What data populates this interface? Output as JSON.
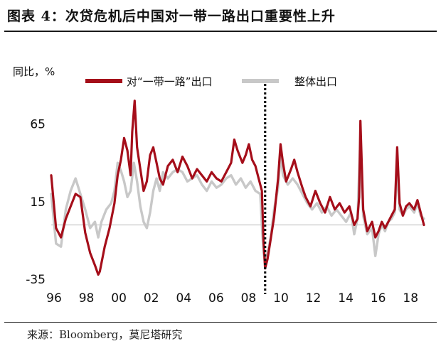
{
  "figure": {
    "title": "图表 4：次贷危机后中国对一带一路出口重要性上升",
    "source": "来源：Bloomberg，莫尼塔研究"
  },
  "chart_data": {
    "type": "line",
    "ylabel": "同比，%",
    "ylim": [
      -40,
      90
    ],
    "xlim": [
      1996.0,
      2019.0
    ],
    "y_ticks": [
      65,
      15,
      -35
    ],
    "x_tick_labels": [
      "96",
      "98",
      "00",
      "02",
      "04",
      "06",
      "08",
      "10",
      "12",
      "14",
      "16",
      "18"
    ],
    "x_tick_values": [
      1996,
      1998,
      2000,
      2002,
      2004,
      2006,
      2008,
      2010,
      2012,
      2014,
      2016,
      2018
    ],
    "zero_line": 0,
    "vline": {
      "x": 2009.2,
      "style": "dotted",
      "color": "#111111"
    },
    "legend_position": "top",
    "series": [
      {
        "name": "对“一带一路”出口",
        "color": "#a50e1a",
        "line_width": 3.2,
        "points": [
          [
            1996.0,
            32
          ],
          [
            1996.3,
            -2
          ],
          [
            1996.6,
            -8
          ],
          [
            1996.9,
            4
          ],
          [
            1997.2,
            12
          ],
          [
            1997.5,
            20
          ],
          [
            1997.8,
            18
          ],
          [
            1998.1,
            -5
          ],
          [
            1998.4,
            -18
          ],
          [
            1998.7,
            -26
          ],
          [
            1998.9,
            -32
          ],
          [
            1999.0,
            -30
          ],
          [
            1999.3,
            -14
          ],
          [
            1999.6,
            -2
          ],
          [
            1999.9,
            14
          ],
          [
            2000.1,
            32
          ],
          [
            2000.3,
            42
          ],
          [
            2000.5,
            56
          ],
          [
            2000.7,
            48
          ],
          [
            2000.9,
            32
          ],
          [
            2001.0,
            60
          ],
          [
            2001.15,
            80
          ],
          [
            2001.3,
            50
          ],
          [
            2001.5,
            36
          ],
          [
            2001.7,
            22
          ],
          [
            2001.9,
            28
          ],
          [
            2002.1,
            45
          ],
          [
            2002.3,
            50
          ],
          [
            2002.5,
            40
          ],
          [
            2002.7,
            30
          ],
          [
            2002.9,
            26
          ],
          [
            2003.2,
            38
          ],
          [
            2003.5,
            42
          ],
          [
            2003.8,
            34
          ],
          [
            2004.1,
            44
          ],
          [
            2004.4,
            38
          ],
          [
            2004.7,
            30
          ],
          [
            2005.0,
            36
          ],
          [
            2005.3,
            32
          ],
          [
            2005.6,
            28
          ],
          [
            2005.9,
            34
          ],
          [
            2006.2,
            30
          ],
          [
            2006.5,
            28
          ],
          [
            2006.8,
            34
          ],
          [
            2007.1,
            40
          ],
          [
            2007.3,
            55
          ],
          [
            2007.5,
            48
          ],
          [
            2007.8,
            40
          ],
          [
            2008.0,
            45
          ],
          [
            2008.2,
            52
          ],
          [
            2008.4,
            42
          ],
          [
            2008.6,
            38
          ],
          [
            2008.8,
            30
          ],
          [
            2009.0,
            22
          ],
          [
            2009.1,
            -10
          ],
          [
            2009.2,
            -28
          ],
          [
            2009.35,
            -22
          ],
          [
            2009.5,
            -12
          ],
          [
            2009.75,
            5
          ],
          [
            2010.0,
            30
          ],
          [
            2010.15,
            52
          ],
          [
            2010.3,
            40
          ],
          [
            2010.5,
            28
          ],
          [
            2010.8,
            36
          ],
          [
            2011.0,
            42
          ],
          [
            2011.2,
            34
          ],
          [
            2011.5,
            24
          ],
          [
            2011.7,
            18
          ],
          [
            2012.0,
            12
          ],
          [
            2012.3,
            22
          ],
          [
            2012.6,
            14
          ],
          [
            2012.9,
            8
          ],
          [
            2013.2,
            18
          ],
          [
            2013.5,
            10
          ],
          [
            2013.8,
            14
          ],
          [
            2014.1,
            8
          ],
          [
            2014.4,
            12
          ],
          [
            2014.7,
            0
          ],
          [
            2014.9,
            4
          ],
          [
            2015.0,
            18
          ],
          [
            2015.08,
            67
          ],
          [
            2015.25,
            10
          ],
          [
            2015.5,
            -4
          ],
          [
            2015.8,
            2
          ],
          [
            2016.0,
            -8
          ],
          [
            2016.2,
            -4
          ],
          [
            2016.4,
            2
          ],
          [
            2016.6,
            -2
          ],
          [
            2016.8,
            2
          ],
          [
            2017.0,
            6
          ],
          [
            2017.2,
            10
          ],
          [
            2017.35,
            50
          ],
          [
            2017.5,
            14
          ],
          [
            2017.7,
            6
          ],
          [
            2017.9,
            12
          ],
          [
            2018.1,
            14
          ],
          [
            2018.4,
            10
          ],
          [
            2018.6,
            16
          ],
          [
            2018.8,
            8
          ],
          [
            2019.0,
            0
          ]
        ]
      },
      {
        "name": "整体出口",
        "color": "#c8c8c8",
        "line_width": 3.4,
        "points": [
          [
            1996.0,
            20
          ],
          [
            1996.3,
            -12
          ],
          [
            1996.6,
            -14
          ],
          [
            1996.9,
            10
          ],
          [
            1997.2,
            22
          ],
          [
            1997.5,
            30
          ],
          [
            1997.8,
            20
          ],
          [
            1998.1,
            10
          ],
          [
            1998.4,
            -2
          ],
          [
            1998.7,
            2
          ],
          [
            1998.9,
            -8
          ],
          [
            1999.1,
            2
          ],
          [
            1999.4,
            10
          ],
          [
            1999.7,
            14
          ],
          [
            1999.9,
            22
          ],
          [
            2000.1,
            40
          ],
          [
            2000.3,
            35
          ],
          [
            2000.5,
            28
          ],
          [
            2000.7,
            18
          ],
          [
            2000.9,
            22
          ],
          [
            2001.1,
            40
          ],
          [
            2001.3,
            28
          ],
          [
            2001.5,
            12
          ],
          [
            2001.7,
            2
          ],
          [
            2001.9,
            -2
          ],
          [
            2002.1,
            8
          ],
          [
            2002.3,
            22
          ],
          [
            2002.5,
            30
          ],
          [
            2002.7,
            22
          ],
          [
            2002.9,
            34
          ],
          [
            2003.2,
            30
          ],
          [
            2003.5,
            34
          ],
          [
            2003.8,
            36
          ],
          [
            2004.1,
            34
          ],
          [
            2004.4,
            28
          ],
          [
            2004.7,
            30
          ],
          [
            2005.0,
            32
          ],
          [
            2005.3,
            26
          ],
          [
            2005.6,
            22
          ],
          [
            2005.9,
            28
          ],
          [
            2006.2,
            24
          ],
          [
            2006.5,
            26
          ],
          [
            2006.8,
            30
          ],
          [
            2007.1,
            32
          ],
          [
            2007.4,
            26
          ],
          [
            2007.7,
            30
          ],
          [
            2008.0,
            24
          ],
          [
            2008.3,
            28
          ],
          [
            2008.6,
            22
          ],
          [
            2008.9,
            20
          ],
          [
            2009.0,
            0
          ],
          [
            2009.1,
            -18
          ],
          [
            2009.2,
            -25
          ],
          [
            2009.35,
            -18
          ],
          [
            2009.55,
            -8
          ],
          [
            2009.75,
            10
          ],
          [
            2010.0,
            24
          ],
          [
            2010.15,
            46
          ],
          [
            2010.3,
            32
          ],
          [
            2010.6,
            26
          ],
          [
            2010.9,
            30
          ],
          [
            2011.2,
            26
          ],
          [
            2011.5,
            20
          ],
          [
            2011.8,
            14
          ],
          [
            2012.1,
            10
          ],
          [
            2012.4,
            14
          ],
          [
            2012.7,
            8
          ],
          [
            2013.0,
            12
          ],
          [
            2013.3,
            6
          ],
          [
            2013.6,
            10
          ],
          [
            2013.9,
            6
          ],
          [
            2014.2,
            2
          ],
          [
            2014.5,
            8
          ],
          [
            2014.7,
            -6
          ],
          [
            2014.9,
            4
          ],
          [
            2015.05,
            48
          ],
          [
            2015.25,
            6
          ],
          [
            2015.5,
            -6
          ],
          [
            2015.8,
            -2
          ],
          [
            2016.0,
            -20
          ],
          [
            2016.2,
            -6
          ],
          [
            2016.4,
            0
          ],
          [
            2016.6,
            -4
          ],
          [
            2016.8,
            2
          ],
          [
            2017.0,
            4
          ],
          [
            2017.2,
            8
          ],
          [
            2017.35,
            36
          ],
          [
            2017.5,
            10
          ],
          [
            2017.7,
            6
          ],
          [
            2017.9,
            10
          ],
          [
            2018.1,
            12
          ],
          [
            2018.4,
            8
          ],
          [
            2018.6,
            14
          ],
          [
            2018.8,
            6
          ],
          [
            2019.0,
            4
          ]
        ]
      }
    ]
  }
}
